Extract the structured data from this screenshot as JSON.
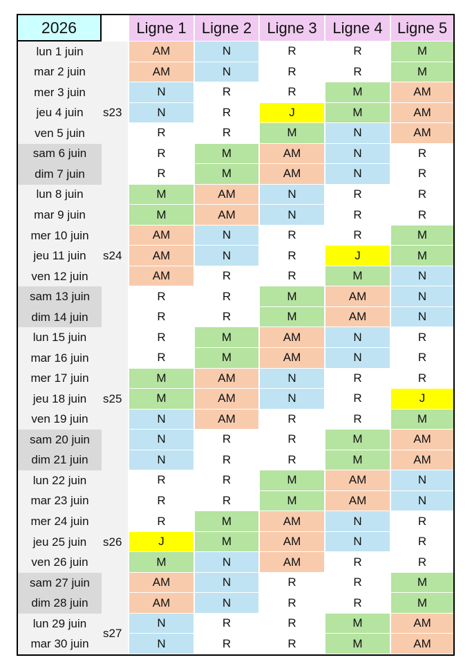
{
  "year": "2026",
  "headers": [
    "Ligne 1",
    "Ligne 2",
    "Ligne 3",
    "Ligne 4",
    "Ligne 5"
  ],
  "colors": {
    "AM": "#f8cbad",
    "N": "#bfe3f3",
    "M": "#b5e3a0",
    "J": "#ffff00",
    "R": "#ffffff"
  },
  "weeks": [
    {
      "label": "s23",
      "rows": 7
    },
    {
      "label": "s24",
      "rows": 7
    },
    {
      "label": "s25",
      "rows": 7
    },
    {
      "label": "s26",
      "rows": 7
    },
    {
      "label": "s27",
      "rows": 2
    }
  ],
  "rows": [
    {
      "date": "lun 1 juin",
      "weekend": false,
      "values": [
        "AM",
        "N",
        "R",
        "R",
        "M"
      ]
    },
    {
      "date": "mar 2 juin",
      "weekend": false,
      "values": [
        "AM",
        "N",
        "R",
        "R",
        "M"
      ]
    },
    {
      "date": "mer 3 juin",
      "weekend": false,
      "values": [
        "N",
        "R",
        "R",
        "M",
        "AM"
      ]
    },
    {
      "date": "jeu 4 juin",
      "weekend": false,
      "values": [
        "N",
        "R",
        "J",
        "M",
        "AM"
      ]
    },
    {
      "date": "ven 5 juin",
      "weekend": false,
      "values": [
        "R",
        "R",
        "M",
        "N",
        "AM"
      ]
    },
    {
      "date": "sam 6 juin",
      "weekend": true,
      "values": [
        "R",
        "M",
        "AM",
        "N",
        "R"
      ]
    },
    {
      "date": "dim 7 juin",
      "weekend": true,
      "values": [
        "R",
        "M",
        "AM",
        "N",
        "R"
      ]
    },
    {
      "date": "lun 8 juin",
      "weekend": false,
      "values": [
        "M",
        "AM",
        "N",
        "R",
        "R"
      ]
    },
    {
      "date": "mar 9 juin",
      "weekend": false,
      "values": [
        "M",
        "AM",
        "N",
        "R",
        "R"
      ]
    },
    {
      "date": "mer 10 juin",
      "weekend": false,
      "values": [
        "AM",
        "N",
        "R",
        "R",
        "M"
      ]
    },
    {
      "date": "jeu 11 juin",
      "weekend": false,
      "values": [
        "AM",
        "N",
        "R",
        "J",
        "M"
      ]
    },
    {
      "date": "ven 12 juin",
      "weekend": false,
      "values": [
        "AM",
        "R",
        "R",
        "M",
        "N"
      ]
    },
    {
      "date": "sam 13 juin",
      "weekend": true,
      "values": [
        "R",
        "R",
        "M",
        "AM",
        "N"
      ]
    },
    {
      "date": "dim 14 juin",
      "weekend": true,
      "values": [
        "R",
        "R",
        "M",
        "AM",
        "N"
      ]
    },
    {
      "date": "lun 15 juin",
      "weekend": false,
      "values": [
        "R",
        "M",
        "AM",
        "N",
        "R"
      ]
    },
    {
      "date": "mar 16 juin",
      "weekend": false,
      "values": [
        "R",
        "M",
        "AM",
        "N",
        "R"
      ]
    },
    {
      "date": "mer 17 juin",
      "weekend": false,
      "values": [
        "M",
        "AM",
        "N",
        "R",
        "R"
      ]
    },
    {
      "date": "jeu 18 juin",
      "weekend": false,
      "values": [
        "M",
        "AM",
        "N",
        "R",
        "J"
      ]
    },
    {
      "date": "ven 19 juin",
      "weekend": false,
      "values": [
        "N",
        "AM",
        "R",
        "R",
        "M"
      ]
    },
    {
      "date": "sam 20 juin",
      "weekend": true,
      "values": [
        "N",
        "R",
        "R",
        "M",
        "AM"
      ]
    },
    {
      "date": "dim 21 juin",
      "weekend": true,
      "values": [
        "N",
        "R",
        "R",
        "M",
        "AM"
      ]
    },
    {
      "date": "lun 22 juin",
      "weekend": false,
      "values": [
        "R",
        "R",
        "M",
        "AM",
        "N"
      ]
    },
    {
      "date": "mar 23 juin",
      "weekend": false,
      "values": [
        "R",
        "R",
        "M",
        "AM",
        "N"
      ]
    },
    {
      "date": "mer 24 juin",
      "weekend": false,
      "values": [
        "R",
        "M",
        "AM",
        "N",
        "R"
      ]
    },
    {
      "date": "jeu 25 juin",
      "weekend": false,
      "values": [
        "J",
        "M",
        "AM",
        "N",
        "R"
      ]
    },
    {
      "date": "ven 26 juin",
      "weekend": false,
      "values": [
        "M",
        "N",
        "AM",
        "R",
        "R"
      ]
    },
    {
      "date": "sam 27 juin",
      "weekend": true,
      "values": [
        "AM",
        "N",
        "R",
        "R",
        "M"
      ]
    },
    {
      "date": "dim 28 juin",
      "weekend": true,
      "values": [
        "AM",
        "N",
        "R",
        "R",
        "M"
      ]
    },
    {
      "date": "lun 29 juin",
      "weekend": false,
      "values": [
        "N",
        "R",
        "R",
        "M",
        "AM"
      ]
    },
    {
      "date": "mar 30 juin",
      "weekend": false,
      "values": [
        "N",
        "R",
        "R",
        "M",
        "AM"
      ]
    }
  ]
}
